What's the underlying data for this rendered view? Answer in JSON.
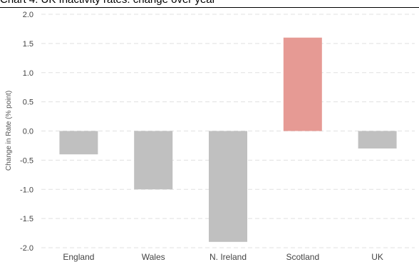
{
  "title_fragment": "Chart 4: UK Inactivity rates: change over year",
  "chart_data": {
    "type": "bar",
    "title": "Chart 4: UK Inactivity rates: change over year",
    "ylabel": "Change in Rate (% point)",
    "xlabel": "",
    "categories": [
      "England",
      "Wales",
      "N. Ireland",
      "Scotland",
      "UK"
    ],
    "values": [
      -0.4,
      -1.0,
      -1.9,
      1.6,
      -0.3
    ],
    "ylim": [
      -2.0,
      2.0
    ],
    "yticks": [
      "2.0",
      "1.5",
      "1.0",
      "0.5",
      "0.0",
      "-0.5",
      "-1.0",
      "-1.5",
      "-2.0"
    ],
    "grid": true,
    "legend": "none",
    "colors": {
      "default_bar": "#c0c0c0",
      "highlight_bar": "#e69a94",
      "grid": "#e0e0e0"
    },
    "highlight_category": "Scotland"
  }
}
